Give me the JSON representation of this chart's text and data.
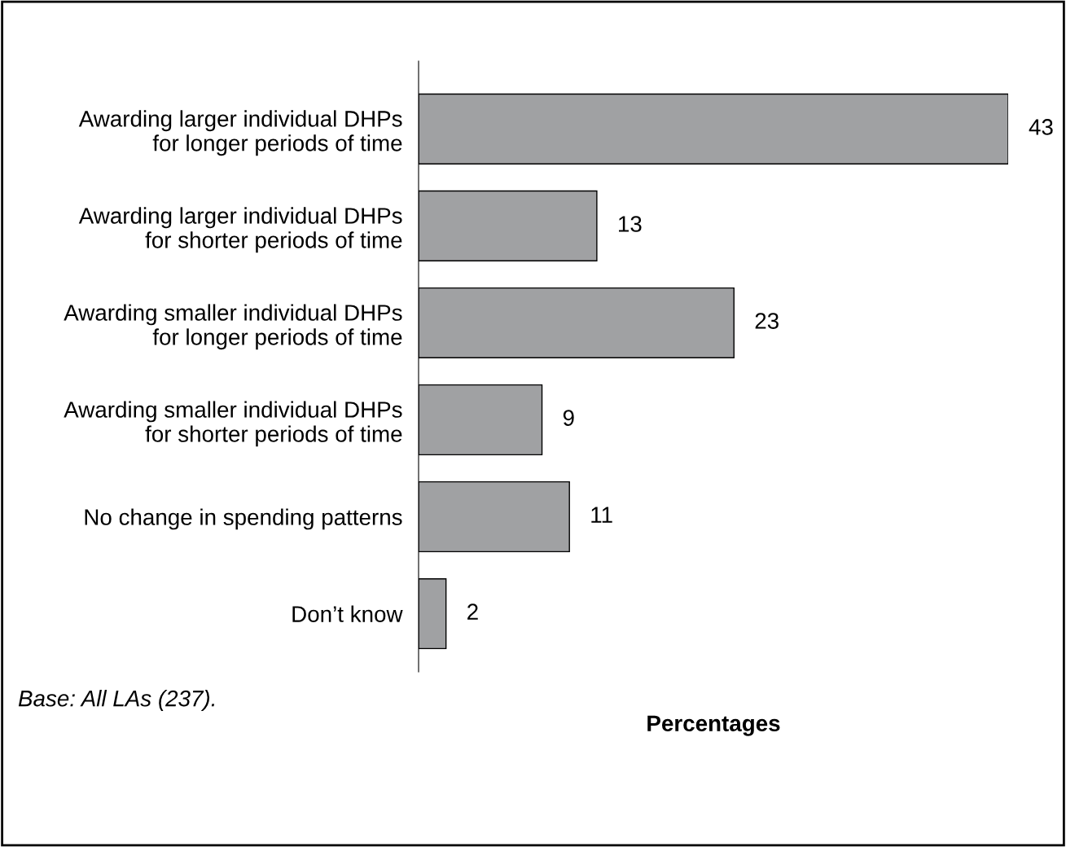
{
  "chart_data": {
    "type": "bar",
    "orientation": "horizontal",
    "xlabel": "Percentages",
    "categories": [
      "Awarding larger individual DHPs\nfor longer periods of time",
      "Awarding larger individual DHPs\nfor shorter periods of time",
      "Awarding smaller individual DHPs\nfor longer periods of time",
      "Awarding smaller individual DHPs\nfor shorter periods of time",
      "No change in spending patterns",
      "Don’t know"
    ],
    "values": [
      43,
      13,
      23,
      9,
      11,
      2
    ],
    "color": "#a0a1a3",
    "data_labels": true,
    "grid": false,
    "legend": false,
    "tick_labels": "y",
    "annotations": [
      "Base: All LAs (237)."
    ]
  }
}
